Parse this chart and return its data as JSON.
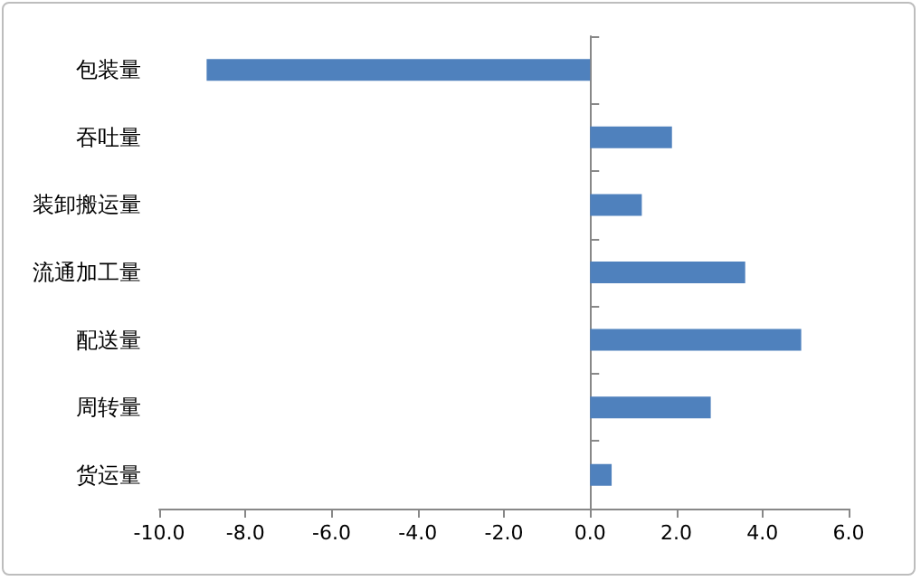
{
  "chart_data": {
    "type": "bar",
    "orientation": "horizontal",
    "categories": [
      "包装量",
      "吞吐量",
      "装卸搬运量",
      "流通加工量",
      "配送量",
      "周转量",
      "货运量"
    ],
    "values": [
      -8.9,
      1.9,
      1.2,
      3.6,
      4.9,
      2.8,
      0.5
    ],
    "color": "#4f81bd",
    "xlim": [
      -10,
      6
    ],
    "xticks": [
      {
        "value": -10,
        "label": "-10.0"
      },
      {
        "value": -8,
        "label": "-8.0"
      },
      {
        "value": -6,
        "label": "-6.0"
      },
      {
        "value": -4,
        "label": "-4.0"
      },
      {
        "value": -2,
        "label": "-2.0"
      },
      {
        "value": 0,
        "label": "0.0"
      },
      {
        "value": 2,
        "label": "2.0"
      },
      {
        "value": 4,
        "label": "4.0"
      },
      {
        "value": 6,
        "label": "6.0"
      }
    ]
  }
}
